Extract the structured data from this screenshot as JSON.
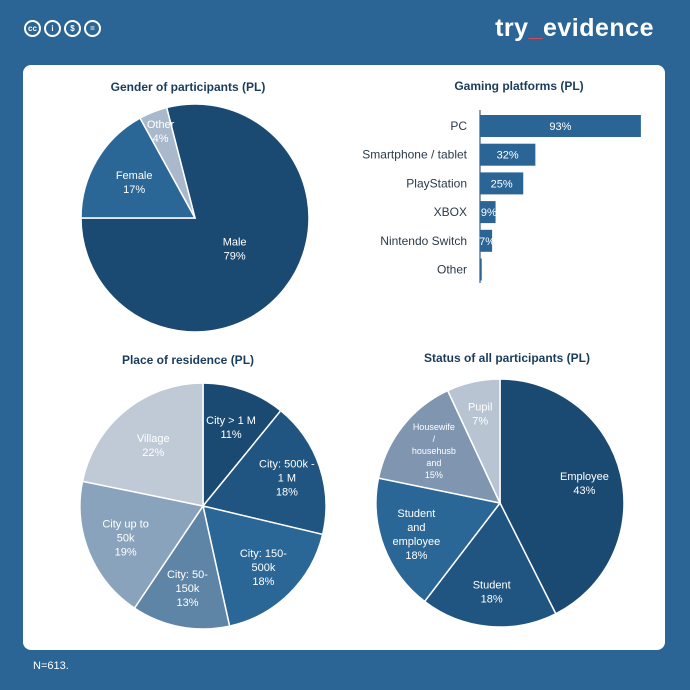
{
  "brand": {
    "prefix": "try",
    "underscore": "_",
    "suffix": "evidence"
  },
  "license_icons": [
    {
      "icon": "cc-icon",
      "glyph": "cc"
    },
    {
      "icon": "attribution-icon",
      "glyph": "i"
    },
    {
      "icon": "noncommercial-icon",
      "glyph": "$"
    },
    {
      "icon": "sharealike-icon",
      "glyph": "="
    }
  ],
  "footnote": "N=613.",
  "colors": {
    "background": "#2b6596",
    "card": "#ffffff",
    "title": "#1a3c5a",
    "label": "#2a3a4a",
    "navy": "#1a4a72",
    "mid": "#2f6a97",
    "bar": "#2b6596",
    "gray_blue": "#5f85a6",
    "light_gray_blue": "#8aa3bc",
    "pale": "#b8c4d2"
  },
  "chart_data": [
    {
      "type": "pie",
      "title": "Gender of participants (PL)",
      "slices": [
        {
          "label": "Male",
          "value": 79,
          "value_label": "79%",
          "color": "#1a4a72"
        },
        {
          "label": "Female",
          "value": 17,
          "value_label": "17%",
          "color": "#2a6796"
        },
        {
          "label": "Other",
          "value": 4,
          "value_label": "4%",
          "color": "#a9b9cb"
        }
      ]
    },
    {
      "type": "bar",
      "orientation": "horizontal",
      "title": "Gaming platforms (PL)",
      "categories": [
        "PC",
        "Smartphone / tablet",
        "PlayStation",
        "XBOX",
        "Nintendo Switch",
        "Other"
      ],
      "values": [
        93,
        32,
        25,
        9,
        7,
        1
      ],
      "value_labels": [
        "93%",
        "32%",
        "25%",
        "9%",
        "7%",
        ""
      ],
      "color": "#2b6596"
    },
    {
      "type": "pie",
      "title": "Place of residence (PL)",
      "slices": [
        {
          "label": "City > 1 M",
          "value": 11,
          "value_label": "11%",
          "color": "#1a4a72"
        },
        {
          "label": "City: 500k - 1 M",
          "value": 18,
          "value_label": "18%",
          "color": "#1f5580"
        },
        {
          "label": "City: 150-500k",
          "value": 18,
          "value_label": "18%",
          "color": "#2a6796"
        },
        {
          "label": "City: 50-150k",
          "value": 13,
          "value_label": "13%",
          "color": "#5f85a6"
        },
        {
          "label": "City up to 50k",
          "value": 19,
          "value_label": "19%",
          "color": "#8aa3bc"
        },
        {
          "label": "Village",
          "value": 22,
          "value_label": "22%",
          "color": "#c0cad7"
        }
      ]
    },
    {
      "type": "pie",
      "title": "Status of all participants (PL)",
      "slices": [
        {
          "label": "Employee",
          "value": 43,
          "value_label": "43%",
          "color": "#1a4a72"
        },
        {
          "label": "Student",
          "value": 18,
          "value_label": "18%",
          "color": "#1f5580"
        },
        {
          "label": "Student and employee",
          "value": 18,
          "value_label": "18%",
          "color": "#2a6796"
        },
        {
          "label": "Housewife / househusb and",
          "value": 15,
          "value_label": "15%",
          "color": "#8096b0"
        },
        {
          "label": "Pupil",
          "value": 7,
          "value_label": "7%",
          "color": "#b8c4d2"
        }
      ]
    }
  ]
}
